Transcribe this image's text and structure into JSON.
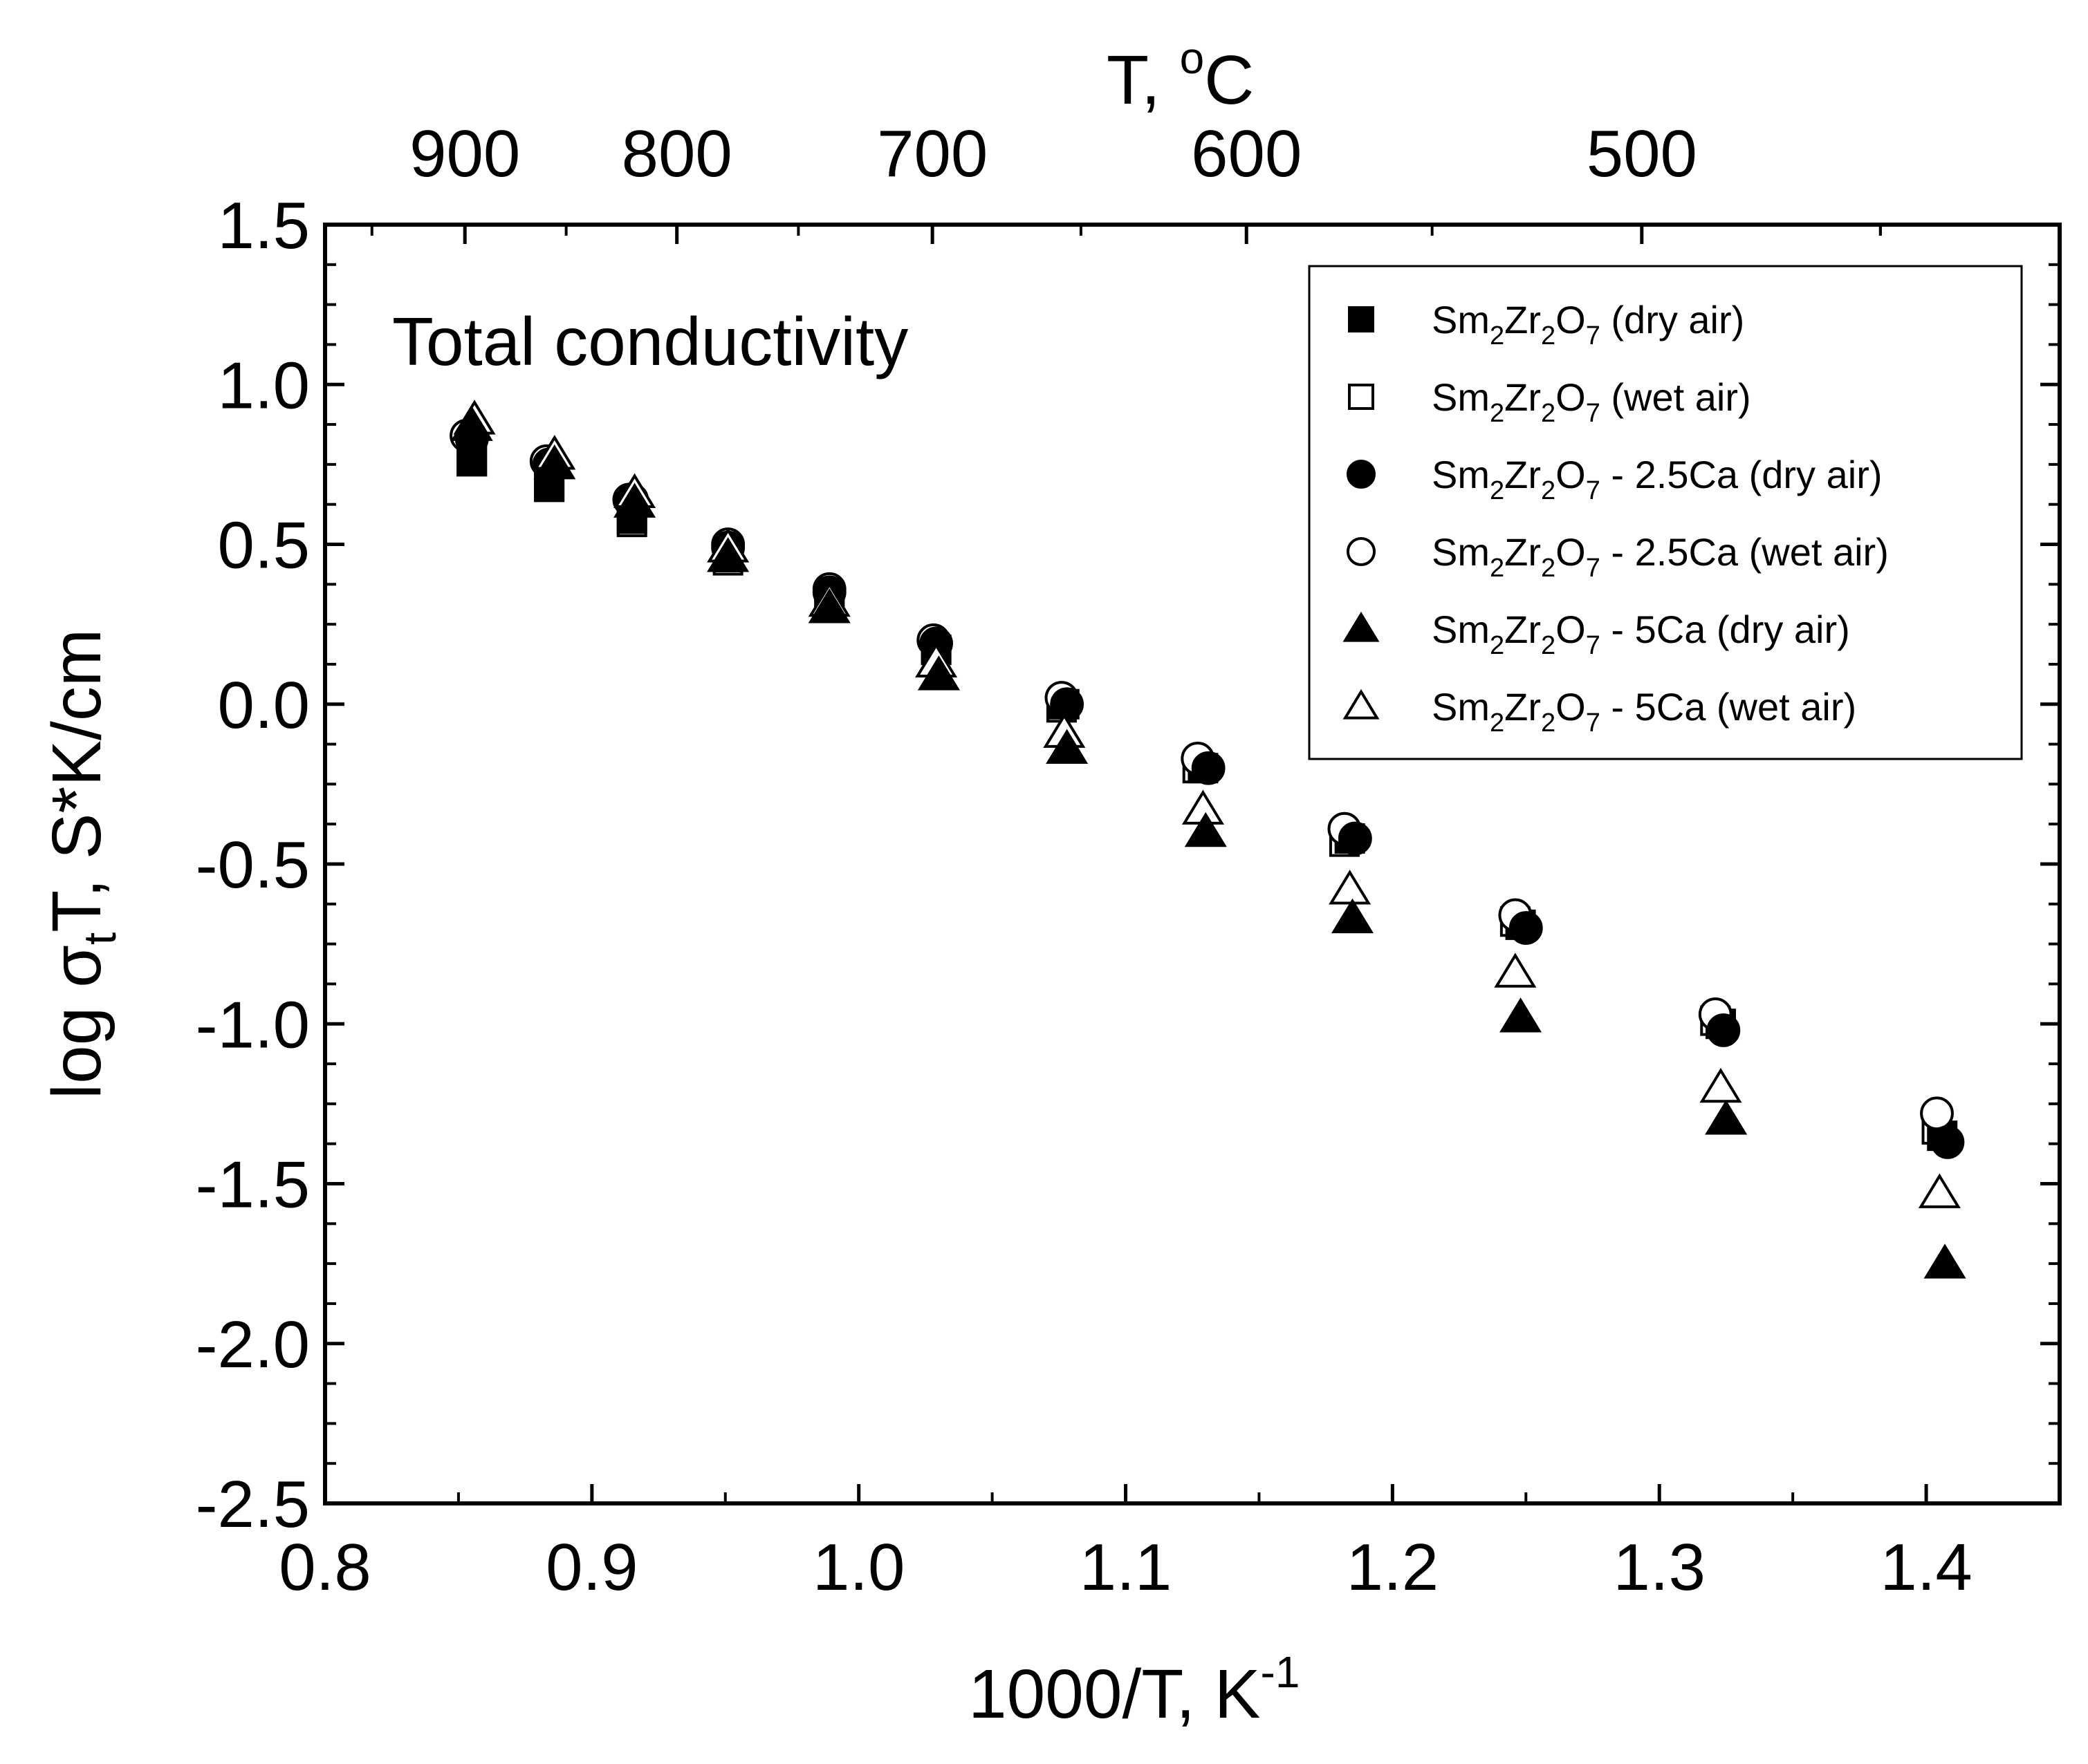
{
  "chart_data": {
    "type": "scatter",
    "title": "",
    "annotation": "Total conductivity",
    "xlabel": {
      "main": "1000/T, K",
      "superscript": "-1"
    },
    "ylabel": {
      "prefix": "log σ",
      "subscript": "t",
      "suffix": "T, S*K/cm"
    },
    "top_xlabel": {
      "main": "T, ",
      "superscript": "o",
      "tail": "C"
    },
    "xlim": [
      0.8,
      1.45
    ],
    "ylim": [
      -2.5,
      1.5
    ],
    "grid": false,
    "legend_position": "top-right",
    "x_ticks": [
      {
        "value": 0.8,
        "label": "0.8"
      },
      {
        "value": 0.9,
        "label": "0.9"
      },
      {
        "value": 1.0,
        "label": "1.0"
      },
      {
        "value": 1.1,
        "label": "1.1"
      },
      {
        "value": 1.2,
        "label": "1.2"
      },
      {
        "value": 1.3,
        "label": "1.3"
      },
      {
        "value": 1.4,
        "label": "1.4"
      }
    ],
    "y_ticks": [
      {
        "value": 1.5,
        "label": "1.5"
      },
      {
        "value": 1.0,
        "label": "1.0"
      },
      {
        "value": 0.5,
        "label": "0.5"
      },
      {
        "value": 0.0,
        "label": "0.0"
      },
      {
        "value": -0.5,
        "label": "-0.5"
      },
      {
        "value": -1.0,
        "label": "-1.0"
      },
      {
        "value": -1.5,
        "label": "-1.5"
      },
      {
        "value": -2.0,
        "label": "-2.0"
      },
      {
        "value": -2.5,
        "label": "-2.5"
      }
    ],
    "top_ticks": [
      {
        "celsius": 900,
        "label": "900"
      },
      {
        "celsius": 800,
        "label": "800"
      },
      {
        "celsius": 700,
        "label": "700"
      },
      {
        "celsius": 600,
        "label": "600"
      },
      {
        "celsius": 500,
        "label": "500"
      }
    ],
    "series": [
      {
        "legend": {
          "a": "Sm",
          "s1": "2",
          "b": "Zr",
          "s2": "2",
          "c": "O",
          "s3": "7",
          "d": " (dry air)"
        },
        "marker": "square",
        "filled": true,
        "points": [
          [
            0.855,
            0.76
          ],
          [
            0.884,
            0.68
          ],
          [
            0.915,
            0.58
          ],
          [
            0.951,
            0.46
          ],
          [
            0.989,
            0.33
          ],
          [
            1.029,
            0.17
          ],
          [
            1.077,
            0.0
          ],
          [
            1.129,
            -0.2
          ],
          [
            1.184,
            -0.42
          ],
          [
            1.248,
            -0.69
          ],
          [
            1.323,
            -1.0
          ],
          [
            1.406,
            -1.35
          ]
        ]
      },
      {
        "legend": {
          "a": "Sm",
          "s1": "2",
          "b": "Zr",
          "s2": "2",
          "c": "O",
          "s3": "7",
          "d": " (wet air)"
        },
        "marker": "square",
        "filled": false,
        "points": [
          [
            0.855,
            0.76
          ],
          [
            0.884,
            0.68
          ],
          [
            0.915,
            0.57
          ],
          [
            0.951,
            0.45
          ],
          [
            0.989,
            0.33
          ],
          [
            1.029,
            0.17
          ],
          [
            1.076,
            -0.01
          ],
          [
            1.127,
            -0.2
          ],
          [
            1.182,
            -0.43
          ],
          [
            1.246,
            -0.68
          ],
          [
            1.321,
            -0.99
          ],
          [
            1.404,
            -1.33
          ]
        ]
      },
      {
        "legend": {
          "a": "Sm",
          "s1": "2",
          "b": "Zr",
          "s2": "2",
          "c": "O",
          "s3": "7",
          "d": " - 2.5Ca (dry air)"
        },
        "marker": "circle",
        "filled": true,
        "points": [
          [
            0.855,
            0.83
          ],
          [
            0.884,
            0.75
          ],
          [
            0.915,
            0.64
          ],
          [
            0.951,
            0.49
          ],
          [
            0.989,
            0.35
          ],
          [
            1.029,
            0.19
          ],
          [
            1.078,
            0.0
          ],
          [
            1.131,
            -0.2
          ],
          [
            1.186,
            -0.42
          ],
          [
            1.25,
            -0.7
          ],
          [
            1.324,
            -1.02
          ],
          [
            1.408,
            -1.37
          ]
        ]
      },
      {
        "legend": {
          "a": "Sm",
          "s1": "2",
          "b": "Zr",
          "s2": "2",
          "c": "O",
          "s3": "7",
          "d": " - 2.5Ca (wet air)"
        },
        "marker": "circle",
        "filled": false,
        "points": [
          [
            0.853,
            0.84
          ],
          [
            0.883,
            0.76
          ],
          [
            0.914,
            0.64
          ],
          [
            0.951,
            0.5
          ],
          [
            0.989,
            0.36
          ],
          [
            1.028,
            0.2
          ],
          [
            1.076,
            0.02
          ],
          [
            1.127,
            -0.17
          ],
          [
            1.182,
            -0.39
          ],
          [
            1.246,
            -0.66
          ],
          [
            1.321,
            -0.97
          ],
          [
            1.404,
            -1.28
          ]
        ]
      },
      {
        "legend": {
          "a": "Sm",
          "s1": "2",
          "b": "Zr",
          "s2": "2",
          "c": "O",
          "s3": "7",
          "d": " - 5Ca (dry air)"
        },
        "marker": "triangle",
        "filled": true,
        "points": [
          [
            0.855,
            0.87
          ],
          [
            0.886,
            0.75
          ],
          [
            0.916,
            0.63
          ],
          [
            0.951,
            0.46
          ],
          [
            0.989,
            0.3
          ],
          [
            1.03,
            0.09
          ],
          [
            1.078,
            -0.14
          ],
          [
            1.13,
            -0.4
          ],
          [
            1.185,
            -0.67
          ],
          [
            1.248,
            -0.98
          ],
          [
            1.325,
            -1.3
          ],
          [
            1.407,
            -1.75
          ]
        ]
      },
      {
        "legend": {
          "a": "Sm",
          "s1": "2",
          "b": "Zr",
          "s2": "2",
          "c": "O",
          "s3": "7",
          "d": " - 5Ca (wet air)"
        },
        "marker": "triangle",
        "filled": false,
        "points": [
          [
            0.856,
            0.89
          ],
          [
            0.886,
            0.78
          ],
          [
            0.916,
            0.66
          ],
          [
            0.951,
            0.49
          ],
          [
            0.989,
            0.32
          ],
          [
            1.029,
            0.13
          ],
          [
            1.077,
            -0.09
          ],
          [
            1.129,
            -0.33
          ],
          [
            1.184,
            -0.58
          ],
          [
            1.246,
            -0.84
          ],
          [
            1.323,
            -1.2
          ],
          [
            1.405,
            -1.53
          ]
        ]
      }
    ]
  }
}
